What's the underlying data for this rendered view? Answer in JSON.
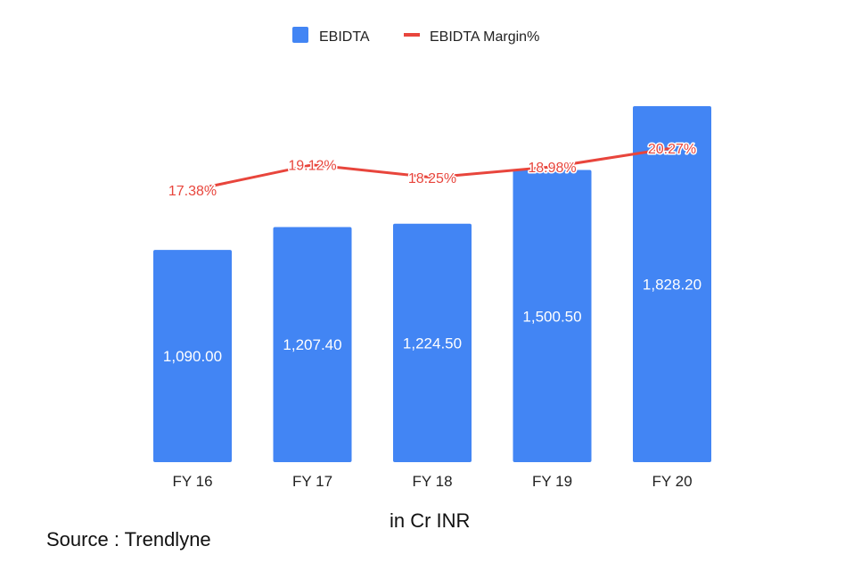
{
  "chart_data": {
    "type": "bar",
    "categories": [
      "FY 16",
      "FY 17",
      "FY 18",
      "FY 19",
      "FY 20"
    ],
    "series": [
      {
        "name": "EBIDTA",
        "type": "bar",
        "color": "#4285f4",
        "values": [
          1090.0,
          1207.4,
          1224.5,
          1500.5,
          1828.2
        ],
        "labels": [
          "1,090.00",
          "1,207.40",
          "1,224.50",
          "1,500.50",
          "1,828.20"
        ]
      },
      {
        "name": "EBIDTA Margin%",
        "type": "line",
        "color": "#e8453c",
        "values": [
          17.38,
          19.12,
          18.25,
          18.98,
          20.27
        ],
        "labels": [
          "17.38%",
          "19.12%",
          "18.25%",
          "18.98%",
          "20.27%"
        ]
      }
    ],
    "legend_position": "top-center",
    "grid": false,
    "ylim": [
      0,
      1828.2
    ]
  },
  "notes": {
    "unit": "in Cr INR",
    "source": "Source : Trendlyne"
  }
}
